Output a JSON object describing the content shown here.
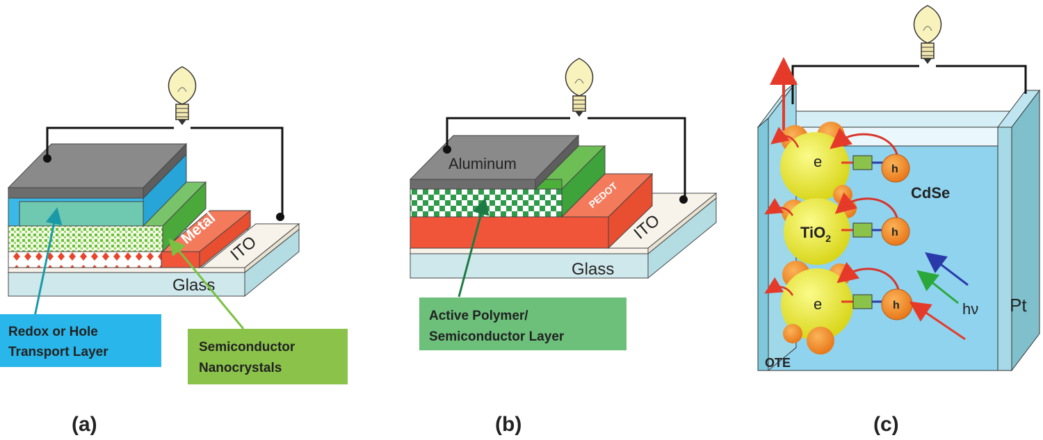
{
  "panel_a": {
    "caption": "(a)",
    "metal_label": "Metal",
    "ito_label": "ITO",
    "glass_label": "Glass",
    "callout_redox": [
      "Redox or Hole",
      "Transport Layer"
    ],
    "callout_nano": [
      "Semiconductor",
      "Nanocrystals"
    ]
  },
  "panel_b": {
    "caption": "(b)",
    "aluminum_label": "Aluminum",
    "pedot_label": "PEDOT",
    "ito_label": "ITO",
    "glass_label": "Glass",
    "callout_active": [
      "Active Polymer/",
      "Semiconductor Layer"
    ]
  },
  "panel_c": {
    "caption": "(c)",
    "cdse_label": "CdSe",
    "tio2_label": "TiO",
    "tio2_sub": "2",
    "e_label": "e",
    "h_label": "h",
    "hv_label": "hν",
    "pt_label": "Pt",
    "ote_label": "OTE"
  },
  "colors": {
    "glass": "#cfe8ec",
    "ito": "#f7f3ea",
    "orange_red": "#f0553a",
    "green": "#4caf3a",
    "blue": "#27aee3",
    "gray": "#7b7b7b",
    "callout_blue": "#29b6ea",
    "callout_green": "#8bc34a",
    "callout_dark_green": "#6cc07a",
    "electrolyte": "#8fd3ee",
    "tio2": "#ecec3c",
    "cdse": "#f5962a",
    "bulb": "#f8f2bd"
  }
}
